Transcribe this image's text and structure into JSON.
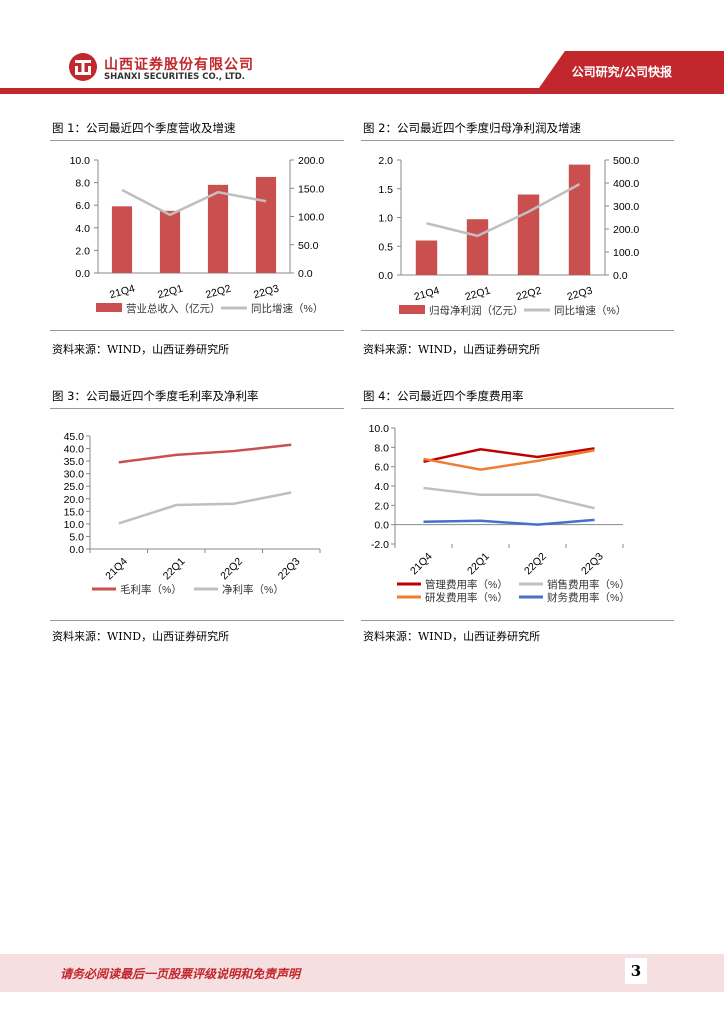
{
  "header": {
    "company_cn": "山西证券股份有限公司",
    "company_en": "SHANXI SECURITIES CO., LTD.",
    "section": "公司研究/公司快报"
  },
  "figures": [
    {
      "title": "图 1：公司最近四个季度营收及增速",
      "source": "资料来源：WIND，山西证券研究所"
    },
    {
      "title": "图 2：公司最近四个季度归母净利润及增速",
      "source": "资料来源：WIND，山西证券研究所"
    },
    {
      "title": "图 3：公司最近四个季度毛利率及净利率",
      "source": "资料来源：WIND，山西证券研究所"
    },
    {
      "title": "图 4：公司最近四个季度费用率",
      "source": "资料来源：WIND，山西证券研究所"
    }
  ],
  "chart_data": [
    {
      "type": "bar+line",
      "categories": [
        "21Q4",
        "22Q1",
        "22Q2",
        "22Q3"
      ],
      "series": [
        {
          "name": "营业总收入（亿元）",
          "kind": "bar",
          "axis": "left",
          "values": [
            5.9,
            5.5,
            7.8,
            8.5
          ],
          "color": "#c9504f"
        },
        {
          "name": "同比增速（%）",
          "kind": "line",
          "axis": "right",
          "values": [
            147,
            103,
            143,
            127
          ],
          "color": "#bfbfbf"
        }
      ],
      "left_axis": {
        "min": 0,
        "max": 10,
        "ticks": [
          "0.0",
          "2.0",
          "4.0",
          "6.0",
          "8.0",
          "10.0"
        ]
      },
      "right_axis": {
        "min": 0,
        "max": 200,
        "ticks": [
          "0.0",
          "50.0",
          "100.0",
          "150.0",
          "200.0"
        ]
      }
    },
    {
      "type": "bar+line",
      "categories": [
        "21Q4",
        "22Q1",
        "22Q2",
        "22Q3"
      ],
      "series": [
        {
          "name": "归母净利润（亿元）",
          "kind": "bar",
          "axis": "left",
          "values": [
            0.6,
            0.97,
            1.4,
            1.92
          ],
          "color": "#c9504f"
        },
        {
          "name": "同比增速（%）",
          "kind": "line",
          "axis": "right",
          "values": [
            225,
            170,
            275,
            395
          ],
          "color": "#bfbfbf"
        }
      ],
      "left_axis": {
        "min": 0,
        "max": 2,
        "ticks": [
          "0.0",
          "0.5",
          "1.0",
          "1.5",
          "2.0"
        ]
      },
      "right_axis": {
        "min": 0,
        "max": 500,
        "ticks": [
          "0.0",
          "100.0",
          "200.0",
          "300.0",
          "400.0",
          "500.0"
        ]
      }
    },
    {
      "type": "line",
      "categories": [
        "21Q4",
        "22Q1",
        "22Q2",
        "22Q3"
      ],
      "series": [
        {
          "name": "毛利率（%）",
          "values": [
            34.5,
            37.5,
            39.0,
            41.5
          ],
          "color": "#c9504f"
        },
        {
          "name": "净利率（%）",
          "values": [
            10.2,
            17.5,
            18.0,
            22.5
          ],
          "color": "#bfbfbf"
        }
      ],
      "y_axis": {
        "min": 0,
        "max": 45,
        "ticks": [
          "0.0",
          "5.0",
          "10.0",
          "15.0",
          "20.0",
          "25.0",
          "30.0",
          "35.0",
          "40.0",
          "45.0"
        ]
      }
    },
    {
      "type": "line",
      "categories": [
        "21Q4",
        "22Q1",
        "22Q2",
        "22Q3"
      ],
      "series": [
        {
          "name": "管理费用率（%）",
          "values": [
            6.5,
            7.8,
            7.0,
            7.9
          ],
          "color": "#c00000"
        },
        {
          "name": "销售费用率（%）",
          "values": [
            3.8,
            3.1,
            3.1,
            1.7
          ],
          "color": "#bfbfbf"
        },
        {
          "name": "研发费用率（%）",
          "values": [
            6.8,
            5.7,
            6.6,
            7.7
          ],
          "color": "#ed7d31"
        },
        {
          "name": "财务费用率（%）",
          "values": [
            0.3,
            0.4,
            0.0,
            0.5
          ],
          "color": "#4472c4"
        }
      ],
      "y_axis": {
        "min": -2,
        "max": 10,
        "ticks": [
          "-2.0",
          "0.0",
          "2.0",
          "4.0",
          "6.0",
          "8.0",
          "10.0"
        ]
      }
    }
  ],
  "footer": {
    "disclaimer": "请务必阅读最后一页股票评级说明和免责声明",
    "page": "3"
  }
}
